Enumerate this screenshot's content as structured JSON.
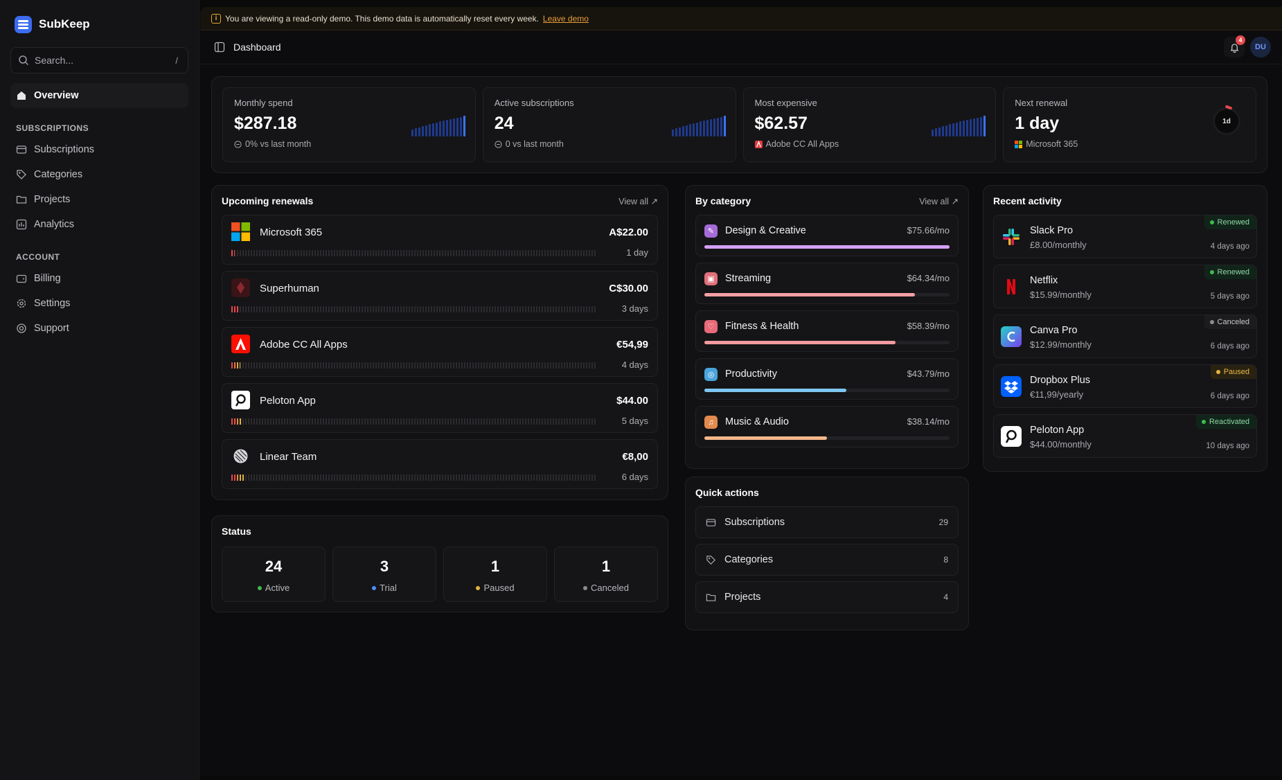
{
  "app": {
    "name": "SubKeep"
  },
  "sidebar": {
    "search_placeholder": "Search...",
    "search_shortcut": "/",
    "overview": "Overview",
    "sections": {
      "subscriptions": {
        "title": "SUBSCRIPTIONS",
        "items": [
          "Subscriptions",
          "Categories",
          "Projects",
          "Analytics"
        ]
      },
      "account": {
        "title": "ACCOUNT",
        "items": [
          "Billing",
          "Settings",
          "Support"
        ]
      }
    }
  },
  "banner": {
    "text": "You are viewing a read-only demo. This demo data is automatically reset every week.",
    "link": "Leave demo"
  },
  "topbar": {
    "title": "Dashboard",
    "notifications": "4",
    "avatar": "DU"
  },
  "kpis": [
    {
      "label": "Monthly spend",
      "value": "$287.18",
      "sub": "0% vs last month"
    },
    {
      "label": "Active subscriptions",
      "value": "24",
      "sub": "0 vs last month"
    },
    {
      "label": "Most expensive",
      "value": "$62.57",
      "sub": "Adobe CC All Apps"
    },
    {
      "label": "Next renewal",
      "value": "1 day",
      "sub": "Microsoft 365",
      "ring": "1d"
    }
  ],
  "upcoming": {
    "title": "Upcoming renewals",
    "view_all": "View all ↗",
    "items": [
      {
        "name": "Microsoft 365",
        "price": "A$22.00",
        "days": "1 day",
        "progress": 0.01
      },
      {
        "name": "Superhuman",
        "price": "C$30.00",
        "days": "3 days",
        "progress": 0.02
      },
      {
        "name": "Adobe CC All Apps",
        "price": "€54,99",
        "days": "4 days",
        "progress": 0.025
      },
      {
        "name": "Peloton App",
        "price": "$44.00",
        "days": "5 days",
        "progress": 0.03
      },
      {
        "name": "Linear Team",
        "price": "€8,00",
        "days": "6 days",
        "progress": 0.035
      }
    ]
  },
  "status": {
    "title": "Status",
    "items": [
      {
        "count": "24",
        "label": "Active",
        "color": "#3fb950"
      },
      {
        "count": "3",
        "label": "Trial",
        "color": "#4c8dff"
      },
      {
        "count": "1",
        "label": "Paused",
        "color": "#e3b341"
      },
      {
        "count": "1",
        "label": "Canceled",
        "color": "#8b8b92"
      }
    ]
  },
  "category": {
    "title": "By category",
    "view_all": "View all ↗",
    "items": [
      {
        "name": "Design & Creative",
        "amount": "$75.66/mo",
        "share": 1.0,
        "color": "#d5a0f5",
        "icon_bg": "#a56bd8"
      },
      {
        "name": "Streaming",
        "amount": "$64.34/mo",
        "share": 0.86,
        "color": "#f2a0a6",
        "icon_bg": "#e0707b"
      },
      {
        "name": "Fitness & Health",
        "amount": "$58.39/mo",
        "share": 0.78,
        "color": "#f39aa0",
        "icon_bg": "#e86a78"
      },
      {
        "name": "Productivity",
        "amount": "$43.79/mo",
        "share": 0.58,
        "color": "#7fc6f2",
        "icon_bg": "#4aa3da"
      },
      {
        "name": "Music & Audio",
        "amount": "$38.14/mo",
        "share": 0.5,
        "color": "#f4b78a",
        "icon_bg": "#e38b4e"
      }
    ]
  },
  "quick_actions": {
    "title": "Quick actions",
    "items": [
      {
        "name": "Subscriptions",
        "count": "29"
      },
      {
        "name": "Categories",
        "count": "8"
      },
      {
        "name": "Projects",
        "count": "4"
      }
    ]
  },
  "activity": {
    "title": "Recent activity",
    "items": [
      {
        "name": "Slack Pro",
        "price": "£8.00/monthly",
        "badge": "Renewed",
        "time": "4 days ago"
      },
      {
        "name": "Netflix",
        "price": "$15.99/monthly",
        "badge": "Renewed",
        "time": "5 days ago"
      },
      {
        "name": "Canva Pro",
        "price": "$12.99/monthly",
        "badge": "Canceled",
        "time": "6 days ago"
      },
      {
        "name": "Dropbox Plus",
        "price": "€11,99/yearly",
        "badge": "Paused",
        "time": "6 days ago"
      },
      {
        "name": "Peloton App",
        "price": "$44.00/monthly",
        "badge": "Reactivated",
        "time": "10 days ago"
      }
    ]
  }
}
